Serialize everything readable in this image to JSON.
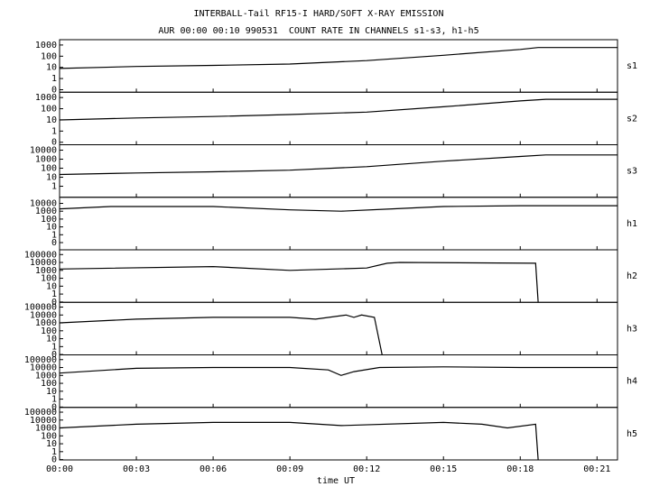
{
  "chart_data": [
    {
      "type": "line",
      "title": "INTERBALL-Tail RF15-I HARD/SOFT X-RAY EMISSION",
      "subtitle": "AUR 00:00 00:10 990531  COUNT RATE IN CHANNELS s1-s3, h1-h5",
      "name": "s1",
      "log_scale": true,
      "color": "#000000",
      "x": [
        0,
        3,
        6,
        9,
        12,
        15,
        18,
        18.7,
        21.8
      ],
      "values": [
        8,
        12,
        15,
        20,
        40,
        120,
        400,
        600,
        600
      ],
      "xlim": [
        0,
        21.8
      ],
      "ylim": [
        0.06,
        3000
      ],
      "yticks": [
        1000,
        100,
        10,
        1,
        {
          "value": 0.1,
          "label": "0"
        }
      ]
    },
    {
      "type": "line",
      "name": "s2",
      "log_scale": true,
      "color": "#000000",
      "x": [
        0,
        3,
        6,
        9,
        12,
        15,
        18,
        19,
        21.8
      ],
      "values": [
        10,
        15,
        20,
        30,
        50,
        150,
        500,
        700,
        700
      ],
      "xlim": [
        0,
        21.8
      ],
      "ylim": [
        0.06,
        3000
      ],
      "yticks": [
        1000,
        100,
        10,
        1,
        {
          "value": 0.1,
          "label": "0"
        }
      ]
    },
    {
      "type": "line",
      "name": "s3",
      "log_scale": true,
      "color": "#000000",
      "x": [
        0,
        3,
        6,
        9,
        12,
        15,
        18,
        19,
        21.8
      ],
      "values": [
        20,
        30,
        40,
        60,
        150,
        600,
        2000,
        3000,
        3000
      ],
      "xlim": [
        0,
        21.8
      ],
      "ylim": [
        0.06,
        40000
      ],
      "yticks": [
        10000,
        1000,
        100,
        10,
        1
      ]
    },
    {
      "type": "line",
      "name": "h1",
      "log_scale": true,
      "color": "#000000",
      "x": [
        0,
        2,
        6,
        9,
        11,
        13,
        15,
        18,
        21.8
      ],
      "values": [
        2000,
        4000,
        4000,
        1500,
        1000,
        2000,
        4000,
        5000,
        5000
      ],
      "xlim": [
        0,
        21.8
      ],
      "ylim": [
        0.012,
        60000
      ],
      "yticks": [
        10000,
        1000,
        100,
        10,
        1,
        {
          "value": 0.1,
          "label": "0"
        }
      ]
    },
    {
      "type": "line",
      "name": "h2",
      "log_scale": true,
      "color": "#000000",
      "x": [
        0,
        6,
        9,
        12,
        12.8,
        13.3,
        18.6,
        18.7
      ],
      "values": [
        1500,
        3000,
        1000,
        2000,
        8000,
        10000,
        8000,
        0.1
      ],
      "xlim": [
        0,
        21.8
      ],
      "ylim": [
        0.09,
        400000
      ],
      "yticks": [
        100000,
        10000,
        1000,
        100,
        10,
        1,
        {
          "value": 0.1,
          "label": "0"
        }
      ]
    },
    {
      "type": "line",
      "name": "h3",
      "log_scale": true,
      "color": "#000000",
      "x": [
        0,
        3,
        6,
        9,
        10,
        11.2,
        11.5,
        11.8,
        12.3,
        12.6
      ],
      "values": [
        1000,
        3000,
        5000,
        5000,
        3000,
        10000,
        5000,
        10000,
        5000,
        0.1
      ],
      "xlim": [
        0,
        21.8
      ],
      "ylim": [
        0.09,
        400000
      ],
      "yticks": [
        100000,
        10000,
        1000,
        100,
        10,
        1,
        {
          "value": 0.1,
          "label": "0"
        }
      ]
    },
    {
      "type": "line",
      "name": "h4",
      "log_scale": true,
      "color": "#000000",
      "x": [
        0,
        3,
        6,
        9,
        10.5,
        11,
        11.5,
        12.5,
        15,
        18,
        21.8
      ],
      "values": [
        2000,
        8000,
        10000,
        10000,
        5000,
        1000,
        3000,
        10000,
        12000,
        10000,
        10000
      ],
      "xlim": [
        0,
        21.8
      ],
      "ylim": [
        0.09,
        400000
      ],
      "yticks": [
        100000,
        10000,
        1000,
        100,
        10,
        1,
        {
          "value": 0.1,
          "label": "0"
        }
      ]
    },
    {
      "type": "line",
      "name": "h5",
      "log_scale": true,
      "color": "#000000",
      "xlabel": "time UT",
      "x": [
        0,
        3,
        6,
        9,
        11,
        15,
        16.5,
        17.5,
        18.6,
        18.7
      ],
      "values": [
        1000,
        3000,
        5000,
        5000,
        2000,
        5000,
        3000,
        1000,
        3000,
        0.1
      ],
      "xlim": [
        0,
        21.8
      ],
      "ylim": [
        0.09,
        400000
      ],
      "yticks": [
        100000,
        10000,
        1000,
        100,
        10,
        1,
        {
          "value": 0.1,
          "label": "0"
        }
      ],
      "xticks": [
        {
          "value": 0,
          "label": "00:00"
        },
        {
          "value": 3,
          "label": "00:03"
        },
        {
          "value": 6,
          "label": "00:06"
        },
        {
          "value": 9,
          "label": "00:09"
        },
        {
          "value": 12,
          "label": "00:12"
        },
        {
          "value": 15,
          "label": "00:15"
        },
        {
          "value": 18,
          "label": "00:18"
        },
        {
          "value": 21,
          "label": "00:21"
        }
      ]
    }
  ]
}
